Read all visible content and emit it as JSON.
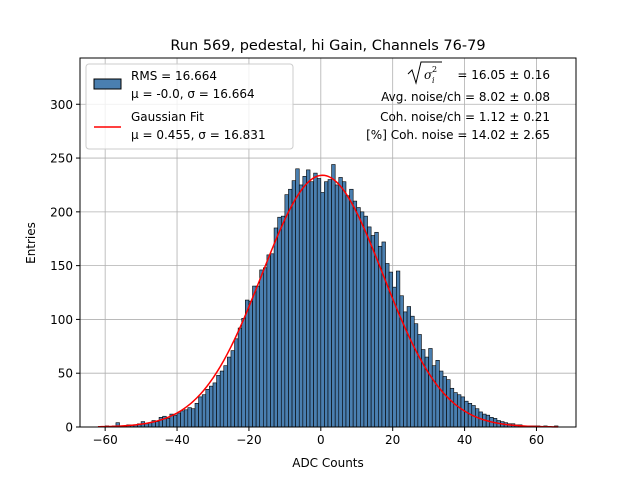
{
  "chart_data": {
    "type": "bar",
    "title": "Run 569, pedestal, hi Gain, Channels 76-79",
    "xlabel": "ADC Counts",
    "ylabel": "Entries",
    "xlim": [
      -67,
      71
    ],
    "ylim": [
      0,
      343
    ],
    "xticks": [
      -60,
      -40,
      -20,
      0,
      20,
      40,
      60
    ],
    "yticks": [
      0,
      50,
      100,
      150,
      200,
      250,
      300
    ],
    "grid": true,
    "bin_width": 1,
    "bar_color": "#4a7fb0",
    "bar_edge_color": "#000000",
    "fit_color": "#ff0000",
    "bins": [
      [
        -60,
        1
      ],
      [
        -59,
        0
      ],
      [
        -58,
        1
      ],
      [
        -57,
        4
      ],
      [
        -56,
        1
      ],
      [
        -55,
        1
      ],
      [
        -54,
        2
      ],
      [
        -53,
        2
      ],
      [
        -52,
        2
      ],
      [
        -51,
        3
      ],
      [
        -50,
        5
      ],
      [
        -49,
        3
      ],
      [
        -48,
        4
      ],
      [
        -47,
        6
      ],
      [
        -46,
        5
      ],
      [
        -45,
        9
      ],
      [
        -44,
        10
      ],
      [
        -43,
        8
      ],
      [
        -42,
        12
      ],
      [
        -41,
        11
      ],
      [
        -40,
        13
      ],
      [
        -39,
        15
      ],
      [
        -38,
        16
      ],
      [
        -37,
        18
      ],
      [
        -36,
        17
      ],
      [
        -35,
        22
      ],
      [
        -34,
        28
      ],
      [
        -33,
        30
      ],
      [
        -32,
        35
      ],
      [
        -31,
        38
      ],
      [
        -30,
        41
      ],
      [
        -29,
        48
      ],
      [
        -28,
        52
      ],
      [
        -27,
        57
      ],
      [
        -26,
        65
      ],
      [
        -25,
        71
      ],
      [
        -24,
        82
      ],
      [
        -23,
        92
      ],
      [
        -22,
        101
      ],
      [
        -21,
        118
      ],
      [
        -20,
        117
      ],
      [
        -19,
        131
      ],
      [
        -18,
        131
      ],
      [
        -17,
        146
      ],
      [
        -16,
        148
      ],
      [
        -15,
        160
      ],
      [
        -14,
        161
      ],
      [
        -13,
        185
      ],
      [
        -12,
        195
      ],
      [
        -11,
        196
      ],
      [
        -10,
        216
      ],
      [
        -9,
        221
      ],
      [
        -8,
        229
      ],
      [
        -7,
        240
      ],
      [
        -6,
        225
      ],
      [
        -5,
        233
      ],
      [
        -4,
        239
      ],
      [
        -3,
        228
      ],
      [
        -2,
        236
      ],
      [
        -1,
        231
      ],
      [
        0,
        218
      ],
      [
        1,
        228
      ],
      [
        2,
        230
      ],
      [
        3,
        244
      ],
      [
        4,
        225
      ],
      [
        5,
        232
      ],
      [
        6,
        228
      ],
      [
        7,
        215
      ],
      [
        8,
        221
      ],
      [
        9,
        210
      ],
      [
        10,
        204
      ],
      [
        11,
        200
      ],
      [
        12,
        196
      ],
      [
        13,
        186
      ],
      [
        14,
        178
      ],
      [
        15,
        181
      ],
      [
        16,
        168
      ],
      [
        17,
        172
      ],
      [
        18,
        152
      ],
      [
        19,
        144
      ],
      [
        20,
        130
      ],
      [
        21,
        145
      ],
      [
        22,
        122
      ],
      [
        23,
        107
      ],
      [
        24,
        112
      ],
      [
        25,
        103
      ],
      [
        26,
        96
      ],
      [
        27,
        86
      ],
      [
        28,
        72
      ],
      [
        29,
        65
      ],
      [
        30,
        73
      ],
      [
        31,
        57
      ],
      [
        32,
        62
      ],
      [
        33,
        52
      ],
      [
        34,
        47
      ],
      [
        35,
        44
      ],
      [
        36,
        36
      ],
      [
        37,
        32
      ],
      [
        38,
        30
      ],
      [
        39,
        28
      ],
      [
        40,
        24
      ],
      [
        41,
        22
      ],
      [
        42,
        20
      ],
      [
        43,
        17
      ],
      [
        44,
        14
      ],
      [
        45,
        12
      ],
      [
        46,
        11
      ],
      [
        47,
        9
      ],
      [
        48,
        8
      ],
      [
        49,
        6
      ],
      [
        50,
        5
      ],
      [
        51,
        4
      ],
      [
        52,
        3
      ],
      [
        53,
        3
      ],
      [
        54,
        2
      ],
      [
        55,
        2
      ],
      [
        56,
        1
      ],
      [
        57,
        1
      ],
      [
        58,
        1
      ],
      [
        59,
        1
      ],
      [
        60,
        1
      ],
      [
        61,
        0
      ],
      [
        62,
        1
      ],
      [
        63,
        0
      ],
      [
        64,
        0
      ],
      [
        65,
        1
      ]
    ],
    "fit": {
      "mu": 0.455,
      "sigma": 16.831,
      "amplitude": 234,
      "x_range": [
        -62,
        66
      ]
    },
    "legend": {
      "placement": "upper-left",
      "entries": [
        {
          "line1": "RMS = 16.664",
          "line2": "μ = -0.0, σ = 16.664"
        },
        {
          "line1": "Gaussian Fit",
          "line2": "μ = 0.455, σ = 16.831"
        }
      ]
    },
    "annotations": {
      "sigma_value": "= 16.05 ± 0.16",
      "avg_noise": "Avg. noise/ch = 8.02 ± 0.08",
      "coh_noise": "Coh. noise/ch = 1.12 ± 0.21",
      "coh_noise_pct": "[%] Coh. noise = 14.02 ± 2.65"
    }
  }
}
